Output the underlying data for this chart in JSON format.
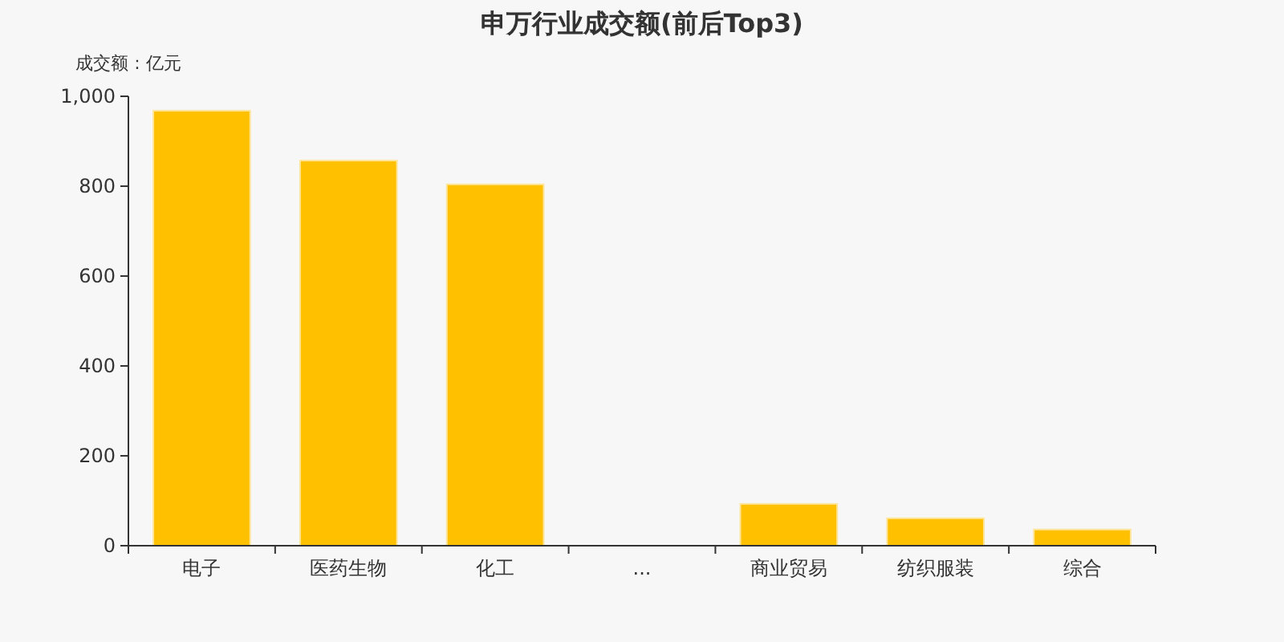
{
  "chart_data": {
    "type": "bar",
    "title": "申万行业成交额(前后Top3)",
    "ylabel": "成交额 : 亿元",
    "categories": [
      "电子",
      "医药生物",
      "化工",
      "...",
      "商业贸易",
      "纺织服装",
      "综合"
    ],
    "values": [
      968,
      857,
      804,
      null,
      93,
      61,
      36
    ],
    "color": "#ffc000",
    "ylim": [
      0,
      1000
    ],
    "yticks": [
      0,
      200,
      400,
      600,
      {
        "value": 800,
        "label": "800"
      },
      {
        "value": 1000,
        "label": "1,000"
      }
    ],
    "grid": false
  }
}
